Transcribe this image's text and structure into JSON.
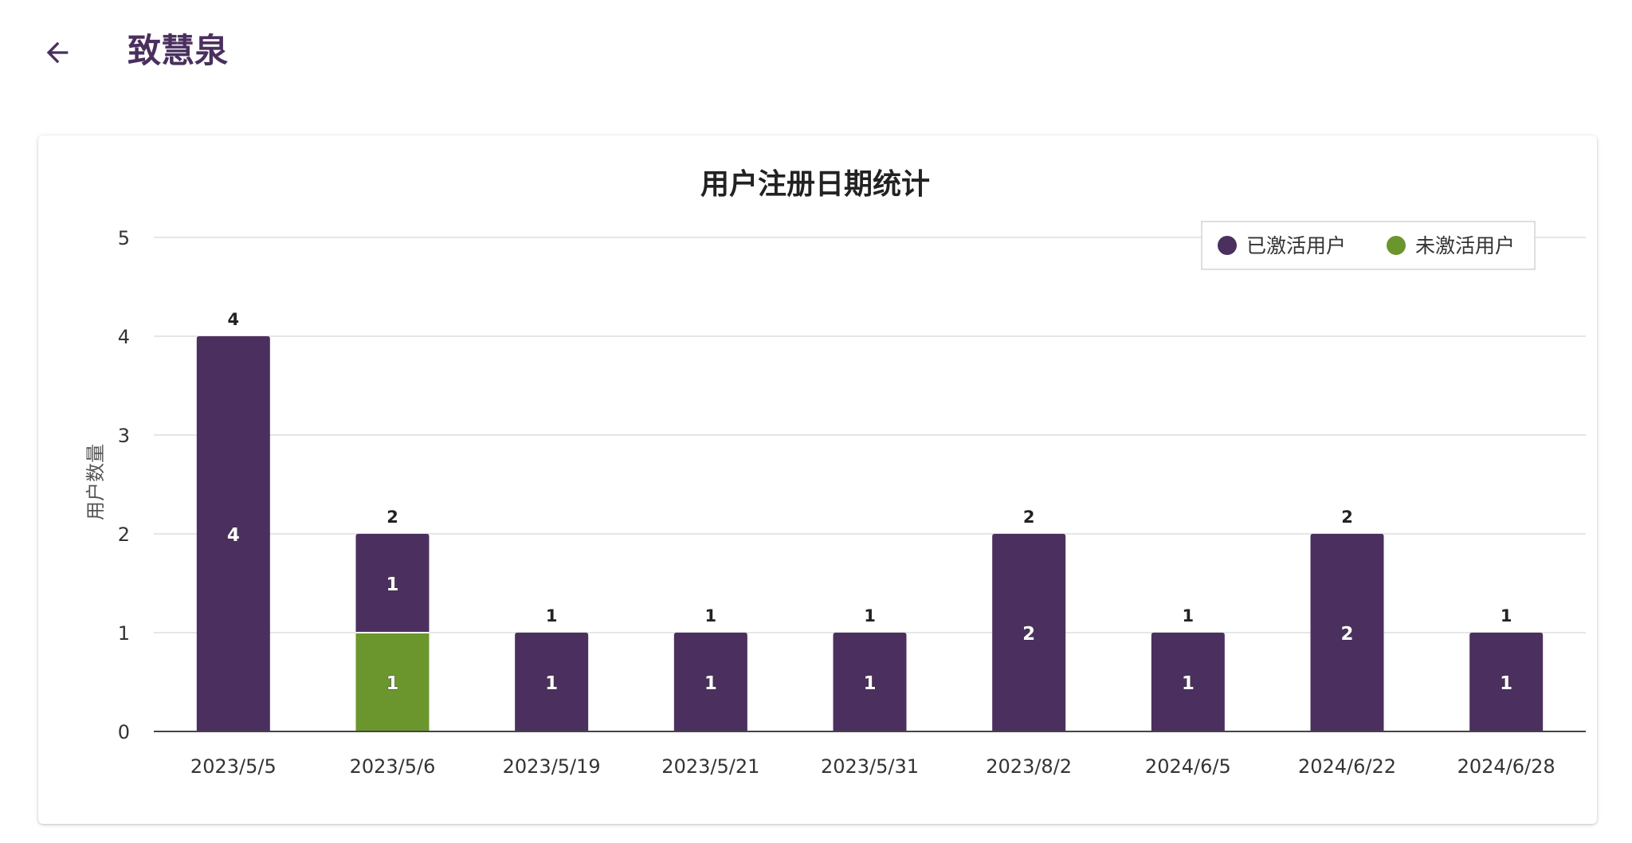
{
  "header": {
    "back_icon": "arrow-left-icon",
    "title": "致慧泉"
  },
  "colors": {
    "accent": "#4a2f5e",
    "activated": "#4b305f",
    "not_activated": "#6b962e",
    "grid": "#dddddd",
    "text": "#333333"
  },
  "chart_data": {
    "type": "bar",
    "stacked": true,
    "title": "用户注册日期统计",
    "xlabel": "",
    "ylabel": "用户数量",
    "ylim": [
      0,
      5
    ],
    "yticks": [
      0,
      1,
      2,
      3,
      4,
      5
    ],
    "grid": true,
    "legend_position": "top-right",
    "categories": [
      "2023/5/5",
      "2023/5/6",
      "2023/5/19",
      "2023/5/21",
      "2023/5/31",
      "2023/8/2",
      "2024/6/5",
      "2024/6/22",
      "2024/6/28"
    ],
    "series": [
      {
        "name": "已激活用户",
        "color": "#4b305f",
        "values": [
          4,
          1,
          1,
          1,
          1,
          2,
          1,
          2,
          1
        ]
      },
      {
        "name": "未激活用户",
        "color": "#6b962e",
        "values": [
          0,
          1,
          0,
          0,
          0,
          0,
          0,
          0,
          0
        ]
      }
    ],
    "totals": [
      4,
      2,
      1,
      1,
      1,
      2,
      1,
      2,
      1
    ]
  }
}
